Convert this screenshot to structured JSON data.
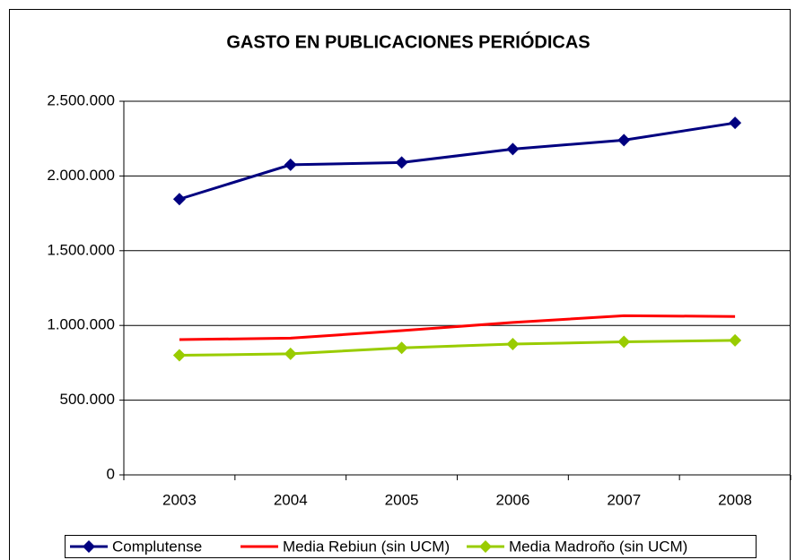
{
  "chart_data": {
    "type": "line",
    "title": "GASTO EN PUBLICACIONES PERIÓDICAS",
    "categories": [
      "2003",
      "2004",
      "2005",
      "2006",
      "2007",
      "2008"
    ],
    "series": [
      {
        "name": "Complutense",
        "color": "#000080",
        "marker": "diamond",
        "values": [
          1845000,
          2075000,
          2090000,
          2180000,
          2240000,
          2355000
        ]
      },
      {
        "name": "Media Rebiun (sin UCM)",
        "color": "#ff0000",
        "marker": "none",
        "values": [
          905000,
          915000,
          965000,
          1020000,
          1065000,
          1060000
        ]
      },
      {
        "name": "Media Madroño (sin UCM)",
        "color": "#99cc00",
        "marker": "diamond",
        "values": [
          800000,
          810000,
          850000,
          875000,
          890000,
          900000
        ]
      }
    ],
    "ylim": [
      0,
      2500000
    ],
    "yticks": [
      0,
      {
        "value": 500000,
        "label": "500.000"
      },
      {
        "value": 1000000,
        "label": "1.000.000"
      },
      {
        "value": 1500000,
        "label": "1.500.000"
      },
      {
        "value": 2000000,
        "label": "2.000.000"
      },
      {
        "value": 2500000,
        "label": "2.500.000"
      }
    ],
    "grid": true,
    "legend": "bottom"
  }
}
